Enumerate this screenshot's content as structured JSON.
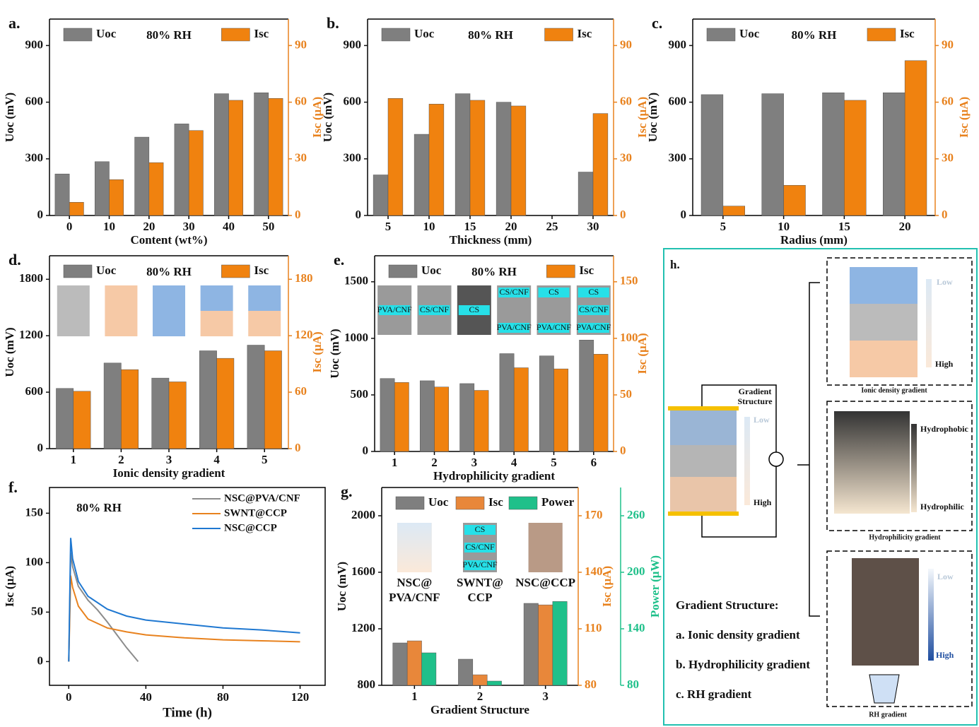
{
  "chart_data": [
    {
      "type": "bar",
      "label": "a.",
      "annotation": "80% RH",
      "xlabel": "Content (wt%)",
      "ylabel": "Uoc (mV)",
      "y2label": "Isc (μA)",
      "categories": [
        "0",
        "10",
        "20",
        "30",
        "40",
        "50"
      ],
      "series": [
        {
          "name": "Uoc",
          "color": "#7f7f7f",
          "values": [
            220,
            285,
            415,
            485,
            645,
            650
          ]
        },
        {
          "name": "Isc",
          "color": "#f0820f",
          "axis": "y2",
          "values": [
            7,
            19,
            28,
            45,
            61,
            62
          ]
        }
      ],
      "ylim": [
        0,
        1040
      ],
      "yticks": [
        0,
        300,
        600,
        900
      ],
      "y2lim": [
        0,
        104
      ],
      "y2ticks": [
        0,
        30,
        60,
        90
      ]
    },
    {
      "type": "bar",
      "label": "b.",
      "annotation": "80% RH",
      "xlabel": "Thickness (mm)",
      "ylabel": "Uoc (mV)",
      "y2label": "Isc (μA)",
      "categories": [
        "5",
        "10",
        "15",
        "20",
        "25",
        "30"
      ],
      "series": [
        {
          "name": "Uoc",
          "color": "#7f7f7f",
          "values": [
            215,
            430,
            645,
            600,
            0,
            230
          ]
        },
        {
          "name": "Isc",
          "color": "#f0820f",
          "axis": "y2",
          "values": [
            62,
            59,
            61,
            58,
            0,
            54
          ]
        }
      ],
      "ylim": [
        0,
        1040
      ],
      "yticks": [
        0,
        300,
        600,
        900
      ],
      "y2lim": [
        0,
        104
      ],
      "y2ticks": [
        0,
        30,
        60,
        90
      ]
    },
    {
      "type": "bar",
      "label": "c.",
      "annotation": "80% RH",
      "xlabel": "Radius (mm)",
      "ylabel": "Uoc (mV)",
      "y2label": "Isc (μA)",
      "categories": [
        "5",
        "10",
        "15",
        "20"
      ],
      "series": [
        {
          "name": "Uoc",
          "color": "#7f7f7f",
          "values": [
            640,
            645,
            650,
            650
          ]
        },
        {
          "name": "Isc",
          "color": "#f0820f",
          "axis": "y2",
          "values": [
            5,
            16,
            61,
            82
          ]
        }
      ],
      "ylim": [
        0,
        1040
      ],
      "yticks": [
        0,
        300,
        600,
        900
      ],
      "y2lim": [
        0,
        104
      ],
      "y2ticks": [
        0,
        30,
        60,
        90
      ]
    },
    {
      "type": "bar",
      "label": "d.",
      "annotation": "80% RH",
      "xlabel": "Ionic density gradient",
      "ylabel": "Uoc (mV)",
      "y2label": "Isc (μA)",
      "categories": [
        "1",
        "2",
        "3",
        "4",
        "5"
      ],
      "series": [
        {
          "name": "Uoc",
          "color": "#7f7f7f",
          "values": [
            640,
            910,
            750,
            1040,
            1100
          ]
        },
        {
          "name": "Isc",
          "color": "#f0820f",
          "axis": "y2",
          "values": [
            61,
            84,
            71,
            96,
            104
          ]
        }
      ],
      "ylim": [
        0,
        2050
      ],
      "yticks": [
        0,
        600,
        1200,
        1800
      ],
      "y2lim": [
        0,
        205
      ],
      "y2ticks": [
        0,
        60,
        120,
        180
      ]
    },
    {
      "type": "bar",
      "label": "e.",
      "annotation": "80% RH",
      "xlabel": "Hydrophilicity gradient",
      "ylabel": "Uoc (mV)",
      "y2label": "Isc (μA)",
      "categories": [
        "1",
        "2",
        "3",
        "4",
        "5",
        "6"
      ],
      "inset_labels": [
        [
          "PVA/CNF"
        ],
        [
          "CS/CNF"
        ],
        [
          "CS"
        ],
        [
          "CS/CNF",
          "PVA/CNF"
        ],
        [
          "CS",
          "PVA/CNF"
        ],
        [
          "CS",
          "CS/CNF",
          "PVA/CNF"
        ]
      ],
      "series": [
        {
          "name": "Uoc",
          "color": "#7f7f7f",
          "values": [
            645,
            625,
            600,
            865,
            845,
            985
          ]
        },
        {
          "name": "Isc",
          "color": "#f0820f",
          "axis": "y2",
          "values": [
            61,
            57,
            54,
            74,
            73,
            86
          ]
        }
      ],
      "ylim": [
        0,
        1730
      ],
      "yticks": [
        0,
        500,
        1000,
        1500
      ],
      "y2lim": [
        0,
        173
      ],
      "y2ticks": [
        0,
        50,
        100,
        150
      ]
    },
    {
      "type": "line",
      "label": "f.",
      "annotation": "80% RH",
      "xlabel": "Time (h)",
      "ylabel": "Isc (μA)",
      "series": [
        {
          "name": "NSC@PVA/CNF",
          "color": "#8c8c8c",
          "x": [
            0,
            1,
            2,
            5,
            10,
            15,
            20,
            25,
            30,
            36
          ],
          "values": [
            0,
            110,
            96,
            76,
            62,
            52,
            40,
            27,
            14,
            0
          ]
        },
        {
          "name": "SWNT@CCP",
          "color": "#e8821e",
          "x": [
            0,
            1,
            2,
            5,
            10,
            20,
            30,
            40,
            60,
            80,
            100,
            120
          ],
          "values": [
            0,
            87,
            75,
            56,
            43,
            34,
            30,
            27,
            24,
            22,
            21,
            20
          ]
        },
        {
          "name": "NSC@CCP",
          "color": "#1f78d1",
          "x": [
            0,
            1,
            2,
            5,
            10,
            20,
            30,
            40,
            60,
            80,
            100,
            120
          ],
          "values": [
            0,
            125,
            104,
            81,
            66,
            53,
            46,
            42,
            38,
            34,
            32,
            29
          ]
        }
      ],
      "xlim": [
        -10,
        133
      ],
      "xticks": [
        0,
        40,
        80,
        120
      ],
      "ylim": [
        -24,
        176
      ],
      "yticks": [
        0,
        50,
        100,
        150
      ]
    },
    {
      "type": "bar",
      "label": "g.",
      "xlabel": "Gradient Structure",
      "ylabel": "Uoc (mV)",
      "y2label": "Isc (μA)",
      "y3label": "Power (μW)",
      "categories": [
        "1",
        "2",
        "3"
      ],
      "sample_labels": [
        [
          "NSC@",
          "PVA/CNF"
        ],
        [
          "SWNT@",
          "CCP"
        ],
        [
          "NSC@CCP"
        ]
      ],
      "inset_labels": [
        [],
        [
          "CS",
          "CS/CNF",
          "PVA/CNF"
        ],
        []
      ],
      "series": [
        {
          "name": "Uoc",
          "color": "#7f7f7f",
          "values": [
            1100,
            985,
            1380
          ]
        },
        {
          "name": "Isc",
          "color": "#e8873a",
          "axis": "y2",
          "values": [
            103.6,
            85.6,
            122.7
          ]
        },
        {
          "name": "Power",
          "color": "#1fc08a",
          "axis": "y3",
          "values": [
            114.5,
            84.5,
            169
          ]
        }
      ],
      "ylim": [
        800,
        2200
      ],
      "yticks": [
        800,
        1200,
        1600,
        2000
      ],
      "y2lim": [
        80,
        185
      ],
      "y2ticks": [
        80,
        110,
        140,
        170
      ],
      "y3lim": [
        80,
        290
      ],
      "y3ticks": [
        80,
        140,
        200,
        260
      ]
    }
  ],
  "diagram": {
    "label": "h.",
    "center": {
      "title": [
        "Gradient",
        "Structure"
      ],
      "low": "Low",
      "high": "High"
    },
    "ionic": {
      "caption": "Ionic density gradient",
      "low": "Low",
      "high": "High"
    },
    "hydro": {
      "caption": "Hydrophilicity gradient",
      "top": "Hydrophobic",
      "bottom": "Hydrophilic"
    },
    "rh": {
      "caption": "RH gradient",
      "low": "Low",
      "high": "High"
    },
    "list_title": "Gradient Structure:",
    "list": [
      "a. Ionic density gradient",
      "b. Hydrophilicity gradient",
      "c. RH gradient"
    ]
  }
}
